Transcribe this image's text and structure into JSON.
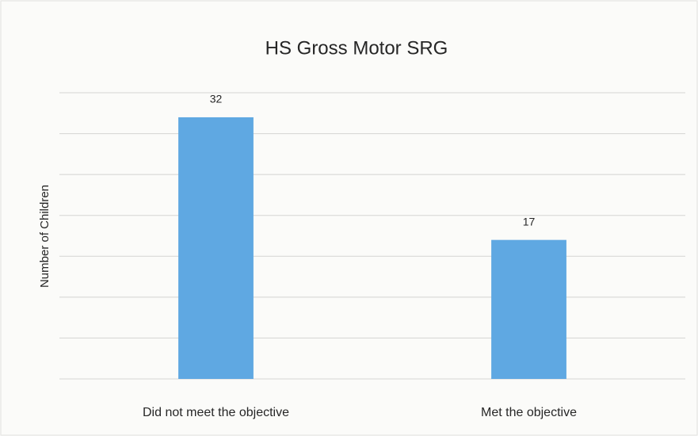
{
  "chart_data": {
    "type": "bar",
    "title": "HS Gross Motor SRG",
    "y_label": "Number of Children",
    "categories": [
      "Did not meet the objective",
      "Met the objective"
    ],
    "values": [
      32,
      17
    ],
    "color": "#5fa8e2",
    "ylim": [
      0,
      35
    ],
    "yticks": [
      0,
      5,
      10,
      15,
      20,
      25,
      30,
      35
    ],
    "grid": true,
    "show_tick_labels": false
  }
}
